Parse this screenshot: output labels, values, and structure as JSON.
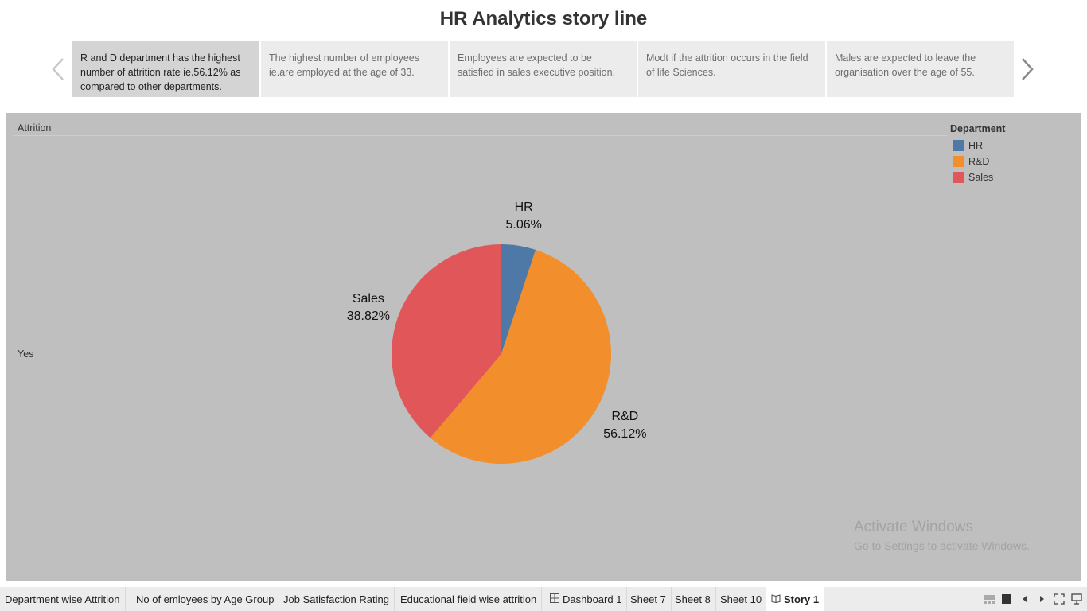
{
  "story": {
    "title": "HR Analytics story line",
    "points": [
      {
        "text": "R and D department has the highest number of attrition rate ie.56.12% as compared to other departments.",
        "active": true
      },
      {
        "text": "The highest number of employees ie.are employed at the age of 33.",
        "active": false
      },
      {
        "text": "Employees are expected to be satisfied in sales executive position.",
        "active": false
      },
      {
        "text": "Modt if the attrition occurs in the field of life Sciences.",
        "active": false
      },
      {
        "text": "Males are expected to leave the organisation over the age of 55.",
        "active": false
      }
    ]
  },
  "viz": {
    "column_header": "Attrition",
    "row_label": "Yes"
  },
  "chart_data": {
    "type": "pie",
    "series": [
      {
        "name": "HR",
        "value": 5.06,
        "label": "5.06%",
        "color": "#4e79a7"
      },
      {
        "name": "R&D",
        "value": 56.12,
        "label": "56.12%",
        "color": "#f28e2b"
      },
      {
        "name": "Sales",
        "value": 38.82,
        "label": "38.82%",
        "color": "#e15759"
      }
    ],
    "legend_title": "Department",
    "legend_position": "top-right"
  },
  "watermark": {
    "line1": "Activate Windows",
    "line2": "Go to Settings to activate Windows."
  },
  "tabs": [
    {
      "label": "Department wise  Attrition",
      "icon": ""
    },
    {
      "label": "No of emloyees by Age Group",
      "icon": ""
    },
    {
      "label": "Job Satisfaction Rating",
      "icon": ""
    },
    {
      "label": "Educational field wise attrition",
      "icon": ""
    },
    {
      "label": "Dashboard 1",
      "icon": "dashboard-icon"
    },
    {
      "label": "Sheet 7",
      "icon": ""
    },
    {
      "label": "Sheet 8",
      "icon": ""
    },
    {
      "label": "Sheet 10",
      "icon": ""
    },
    {
      "label": "Story 1",
      "icon": "story-icon",
      "active": true
    }
  ],
  "colors": {
    "viz_background": "#bfbfbf",
    "active_story_point": "#d4d4d4"
  }
}
